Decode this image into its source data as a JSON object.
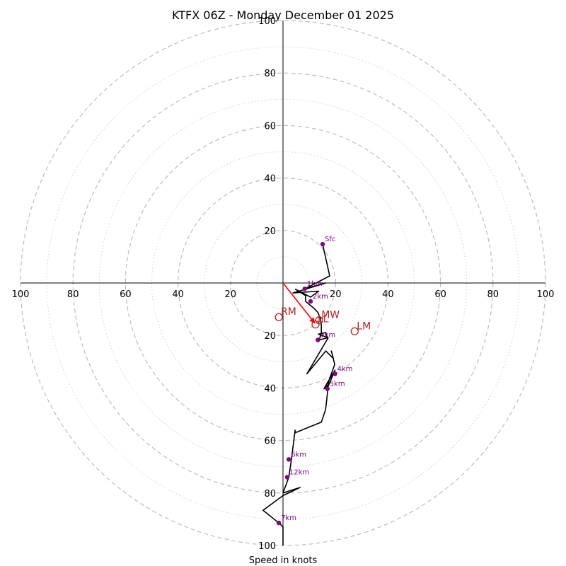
{
  "chart_data": {
    "type": "line",
    "title": "KTFX 06Z - Monday December 01 2025",
    "xlabel": "Speed in knots",
    "ylabel": "",
    "xlim": [
      -100,
      100
    ],
    "ylim": [
      -100,
      100
    ],
    "tick_labels": [
      "20",
      "40",
      "60",
      "80",
      "100"
    ],
    "rings_major": [
      20,
      40,
      60,
      80,
      100
    ],
    "rings_minor": [
      10,
      30,
      50,
      70,
      90
    ],
    "series": [
      {
        "name": "hodograph",
        "color": "#000000",
        "u": [
          15.1,
          17.8,
          8.3,
          16.3,
          3.8,
          13.6,
          10.5,
          4.8,
          8.6,
          8.6,
          11.9,
          13.3,
          14.3,
          14.6,
          14.6,
          13.8,
          16.9,
          16.3,
          13.5,
          17.2,
          9.1,
          16.3,
          19.2,
          18.4,
          19.7,
          17.4,
          16.8,
          19.8,
          16.9,
          15.6,
          17.3,
          16.5,
          16.2,
          14.6,
          4.6,
          4.6,
          3.2,
          2.2,
          0.0,
          6.5,
          0.0,
          -7.6,
          -1.6,
          0.0,
          0.0
        ],
        "v": [
          14.8,
          2.7,
          -2.2,
          0.0,
          -3.8,
          -3.1,
          -5.4,
          -2.4,
          -4.8,
          -7.0,
          -9.7,
          -11.2,
          -13.8,
          -16.3,
          -18.8,
          -21.7,
          -20.9,
          -18.9,
          -19.5,
          -20.9,
          -34.6,
          -25.9,
          -28.8,
          -25.9,
          -31.0,
          -37.4,
          -40.3,
          -33.2,
          -38.0,
          -40.3,
          -38.6,
          -45.9,
          -48.3,
          -53.0,
          -57.1,
          -56.1,
          -67.2,
          -74.0,
          -80.0,
          -77.9,
          -81.0,
          -86.6,
          -91.4,
          -92.9,
          -100.0
        ]
      },
      {
        "name": "mean-wind-vector",
        "color": "#ff0000",
        "u": [
          0,
          12.2
        ],
        "v": [
          0,
          -15.4
        ]
      }
    ],
    "height_markers": [
      {
        "label": "Sfc",
        "u": 15.1,
        "v": 14.8
      },
      {
        "label": "1km",
        "u": 8.3,
        "v": -2.2
      },
      {
        "label": "2km",
        "u": 10.5,
        "v": -7.0
      },
      {
        "label": "3km",
        "u": 13.3,
        "v": -21.7
      },
      {
        "label": "4km",
        "u": 19.8,
        "v": -34.6
      },
      {
        "label": "5km",
        "u": 16.9,
        "v": -40.3
      },
      {
        "label": "6km",
        "u": 2.2,
        "v": -67.2
      },
      {
        "label": "12km",
        "u": 1.6,
        "v": -74.0
      },
      {
        "label": "7km",
        "u": -1.6,
        "v": -91.4
      }
    ],
    "storm_motions": [
      {
        "label": "RM",
        "u": -1.6,
        "v": -13.0
      },
      {
        "label": "LM",
        "u": 27.3,
        "v": -18.4
      },
      {
        "label": "LL",
        "u": 12.4,
        "v": -15.8
      },
      {
        "label": "MW",
        "u": 13.8,
        "v": -14.2
      }
    ],
    "colors": {
      "grid": "#bdbdbd",
      "marker": "#800080",
      "storm_motion": "#b22222",
      "mean_wind": "#ff0000",
      "line": "#000000"
    }
  }
}
